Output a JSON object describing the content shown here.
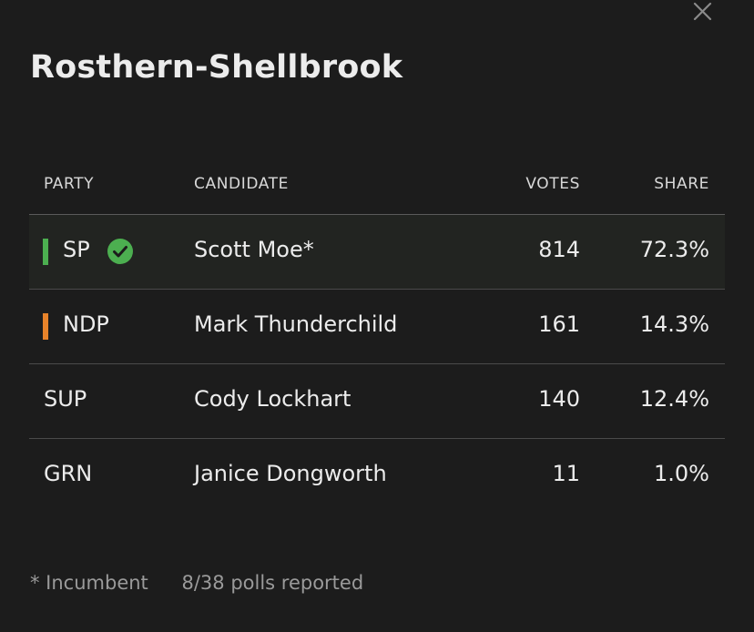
{
  "riding": {
    "name": "Rosthern-Shellbrook"
  },
  "table": {
    "headers": {
      "party": "PARTY",
      "candidate": "CANDIDATE",
      "votes": "VOTES",
      "share": "SHARE"
    },
    "rows": [
      {
        "party": "SP",
        "candidate": "Scott Moe*",
        "votes": "814",
        "share": "72.3%",
        "color": "#4caf50",
        "winner": true
      },
      {
        "party": "NDP",
        "candidate": "Mark Thunderchild",
        "votes": "161",
        "share": "14.3%",
        "color": "#e8832a",
        "winner": false
      },
      {
        "party": "SUP",
        "candidate": "Cody Lockhart",
        "votes": "140",
        "share": "12.4%",
        "color": "",
        "winner": false
      },
      {
        "party": "GRN",
        "candidate": "Janice Dongworth",
        "votes": "11",
        "share": "1.0%",
        "color": "",
        "winner": false
      }
    ]
  },
  "footer": {
    "incumbent_note": "* Incumbent",
    "polls_reported": "8/38 polls reported"
  },
  "icons": {
    "close": "close-icon",
    "winner": "check-circle-icon"
  }
}
